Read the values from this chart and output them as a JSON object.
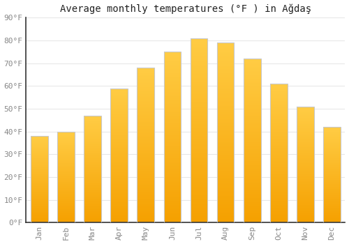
{
  "title": "Average monthly temperatures (°F ) in Ağdaş",
  "months": [
    "Jan",
    "Feb",
    "Mar",
    "Apr",
    "May",
    "Jun",
    "Jul",
    "Aug",
    "Sep",
    "Oct",
    "Nov",
    "Dec"
  ],
  "values": [
    38,
    40,
    47,
    59,
    68,
    75,
    81,
    79,
    72,
    61,
    51,
    42
  ],
  "bar_color_center": "#FFCC44",
  "bar_color_edge": "#F5A000",
  "bar_edge_color": "#C8C8C8",
  "background_color": "#FFFFFF",
  "grid_color": "#E8E8E8",
  "axis_color": "#333333",
  "tick_label_color": "#888888",
  "ylabel_ticks": [
    "0°F",
    "10°F",
    "20°F",
    "30°F",
    "40°F",
    "50°F",
    "60°F",
    "70°F",
    "80°F",
    "90°F"
  ],
  "ylim": [
    0,
    90
  ],
  "title_fontsize": 10,
  "tick_fontsize": 8,
  "figsize": [
    5.0,
    3.5
  ],
  "dpi": 100
}
